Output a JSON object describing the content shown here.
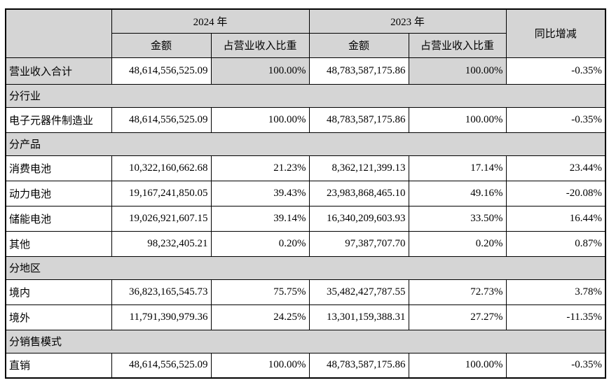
{
  "table": {
    "colors": {
      "header_bg": "#d5d5d5",
      "border": "#000000",
      "text": "#000000"
    },
    "header": {
      "year_2024": "2024 年",
      "year_2023": "2023 年",
      "amount": "金额",
      "share": "占营业收入比重",
      "yoy": "同比增减"
    },
    "rows": [
      {
        "type": "total",
        "label": "营业收入合计",
        "amount_2024": "48,614,556,525.09",
        "share_2024": "100.00%",
        "amount_2023": "48,783,587,175.86",
        "share_2023": "100.00%",
        "yoy": "-0.35%"
      },
      {
        "type": "section",
        "label": "分行业"
      },
      {
        "type": "data",
        "label": "电子元器件制造业",
        "amount_2024": "48,614,556,525.09",
        "share_2024": "100.00%",
        "amount_2023": "48,783,587,175.86",
        "share_2023": "100.00%",
        "yoy": "-0.35%"
      },
      {
        "type": "section",
        "label": "分产品"
      },
      {
        "type": "data",
        "label": "消费电池",
        "amount_2024": "10,322,160,662.68",
        "share_2024": "21.23%",
        "amount_2023": "8,362,121,399.13",
        "share_2023": "17.14%",
        "yoy": "23.44%"
      },
      {
        "type": "data",
        "label": "动力电池",
        "amount_2024": "19,167,241,850.05",
        "share_2024": "39.43%",
        "amount_2023": "23,983,868,465.10",
        "share_2023": "49.16%",
        "yoy": "-20.08%"
      },
      {
        "type": "data",
        "label": "储能电池",
        "amount_2024": "19,026,921,607.15",
        "share_2024": "39.14%",
        "amount_2023": "16,340,209,603.93",
        "share_2023": "33.50%",
        "yoy": "16.44%"
      },
      {
        "type": "data",
        "label": "其他",
        "amount_2024": "98,232,405.21",
        "share_2024": "0.20%",
        "amount_2023": "97,387,707.70",
        "share_2023": "0.20%",
        "yoy": "0.87%"
      },
      {
        "type": "section",
        "label": "分地区"
      },
      {
        "type": "data",
        "label": "境内",
        "amount_2024": "36,823,165,545.73",
        "share_2024": "75.75%",
        "amount_2023": "35,482,427,787.55",
        "share_2023": "72.73%",
        "yoy": "3.78%"
      },
      {
        "type": "data",
        "label": "境外",
        "amount_2024": "11,791,390,979.36",
        "share_2024": "24.25%",
        "amount_2023": "13,301,159,388.31",
        "share_2023": "27.27%",
        "yoy": "-11.35%"
      },
      {
        "type": "section",
        "label": "分销售模式"
      },
      {
        "type": "data",
        "label": "直销",
        "amount_2024": "48,614,556,525.09",
        "share_2024": "100.00%",
        "amount_2023": "48,783,587,175.86",
        "share_2023": "100.00%",
        "yoy": "-0.35%"
      }
    ]
  }
}
